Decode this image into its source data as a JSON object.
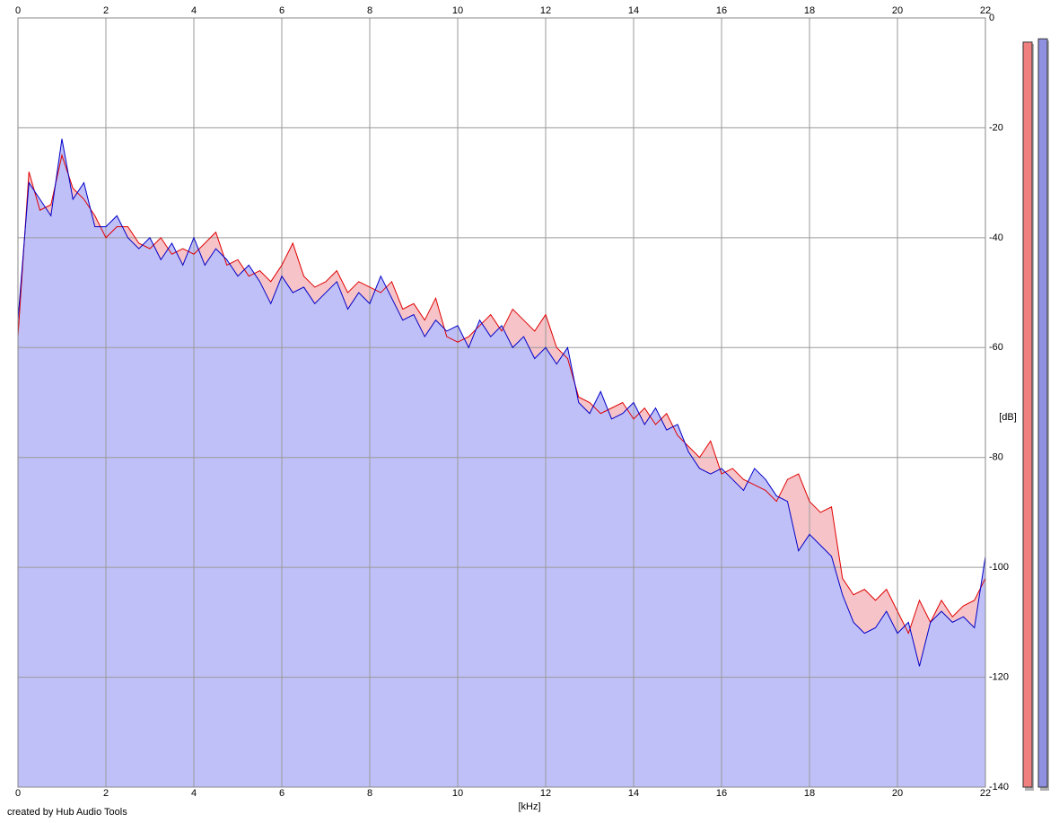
{
  "chart_data": {
    "type": "spectrum",
    "footer": "created by Hub Audio Tools",
    "xlabel": "[kHz]",
    "ylabel": "[dB]",
    "xlim": [
      0,
      22
    ],
    "xticks": [
      0,
      2,
      4,
      6,
      8,
      10,
      12,
      14,
      16,
      18,
      20,
      22
    ],
    "ylim": [
      -140,
      0
    ],
    "yticks": [
      0,
      -20,
      -40,
      -60,
      -80,
      -100,
      -120,
      -140
    ],
    "grid": true,
    "x": [
      0,
      0.25,
      0.5,
      0.75,
      1,
      1.25,
      1.5,
      1.75,
      2,
      2.25,
      2.5,
      2.75,
      3,
      3.25,
      3.5,
      3.75,
      4,
      4.25,
      4.5,
      4.75,
      5,
      5.25,
      5.5,
      5.75,
      6,
      6.25,
      6.5,
      6.75,
      7,
      7.25,
      7.5,
      7.75,
      8,
      8.25,
      8.5,
      8.75,
      9,
      9.25,
      9.5,
      9.75,
      10,
      10.25,
      10.5,
      10.75,
      11,
      11.25,
      11.5,
      11.75,
      12,
      12.25,
      12.5,
      12.75,
      13,
      13.25,
      13.5,
      13.75,
      14,
      14.25,
      14.5,
      14.75,
      15,
      15.25,
      15.5,
      15.75,
      16,
      16.25,
      16.5,
      16.75,
      17,
      17.25,
      17.5,
      17.75,
      18,
      18.25,
      18.5,
      18.75,
      19,
      19.25,
      19.5,
      19.75,
      20,
      20.25,
      20.5,
      20.75,
      21,
      21.25,
      21.5,
      21.75,
      22
    ],
    "series": [
      {
        "color": "#e00000",
        "fill": "#f6c4c8",
        "values": [
          -58,
          -28,
          -35,
          -34,
          -25,
          -31,
          -33,
          -36,
          -40,
          -38,
          -38,
          -41,
          -42,
          -40,
          -43,
          -42,
          -43,
          -41,
          -39,
          -45,
          -44,
          -47,
          -46,
          -48,
          -45,
          -41,
          -47,
          -49,
          -48,
          -46,
          -50,
          -48,
          -49,
          -50,
          -48,
          -53,
          -52,
          -55,
          -51,
          -58,
          -59,
          -58,
          -56,
          -54,
          -57,
          -53,
          -55,
          -57,
          -54,
          -60,
          -62,
          -69,
          -70,
          -72,
          -71,
          -70,
          -73,
          -71,
          -74,
          -72,
          -76,
          -78,
          -80,
          -77,
          -83,
          -82,
          -84,
          -85,
          -86,
          -88,
          -84,
          -83,
          -88,
          -90,
          -89,
          -102,
          -105,
          -104,
          -106,
          -104,
          -108,
          -112,
          -106,
          -110,
          -106,
          -109,
          -107,
          -106,
          -102
        ]
      },
      {
        "color": "#0000c8",
        "fill": "#c0c0f8",
        "values": [
          -55,
          -30,
          -33,
          -36,
          -22,
          -33,
          -30,
          -38,
          -38,
          -36,
          -40,
          -42,
          -40,
          -44,
          -41,
          -45,
          -40,
          -45,
          -42,
          -44,
          -47,
          -45,
          -48,
          -52,
          -47,
          -50,
          -49,
          -52,
          -50,
          -48,
          -53,
          -50,
          -52,
          -47,
          -51,
          -55,
          -54,
          -58,
          -55,
          -57,
          -56,
          -60,
          -55,
          -58,
          -56,
          -60,
          -58,
          -62,
          -60,
          -63,
          -60,
          -70,
          -72,
          -68,
          -73,
          -72,
          -70,
          -74,
          -71,
          -75,
          -74,
          -79,
          -82,
          -83,
          -82,
          -84,
          -86,
          -82,
          -84,
          -87,
          -88,
          -97,
          -94,
          -96,
          -98,
          -105,
          -110,
          -112,
          -111,
          -108,
          -112,
          -110,
          -118,
          -110,
          -108,
          -110,
          -109,
          -111,
          -98
        ]
      }
    ],
    "meters": [
      {
        "color": "#f08080",
        "value": -4.4
      },
      {
        "color": "#9090e0",
        "value": -3.8
      }
    ]
  }
}
